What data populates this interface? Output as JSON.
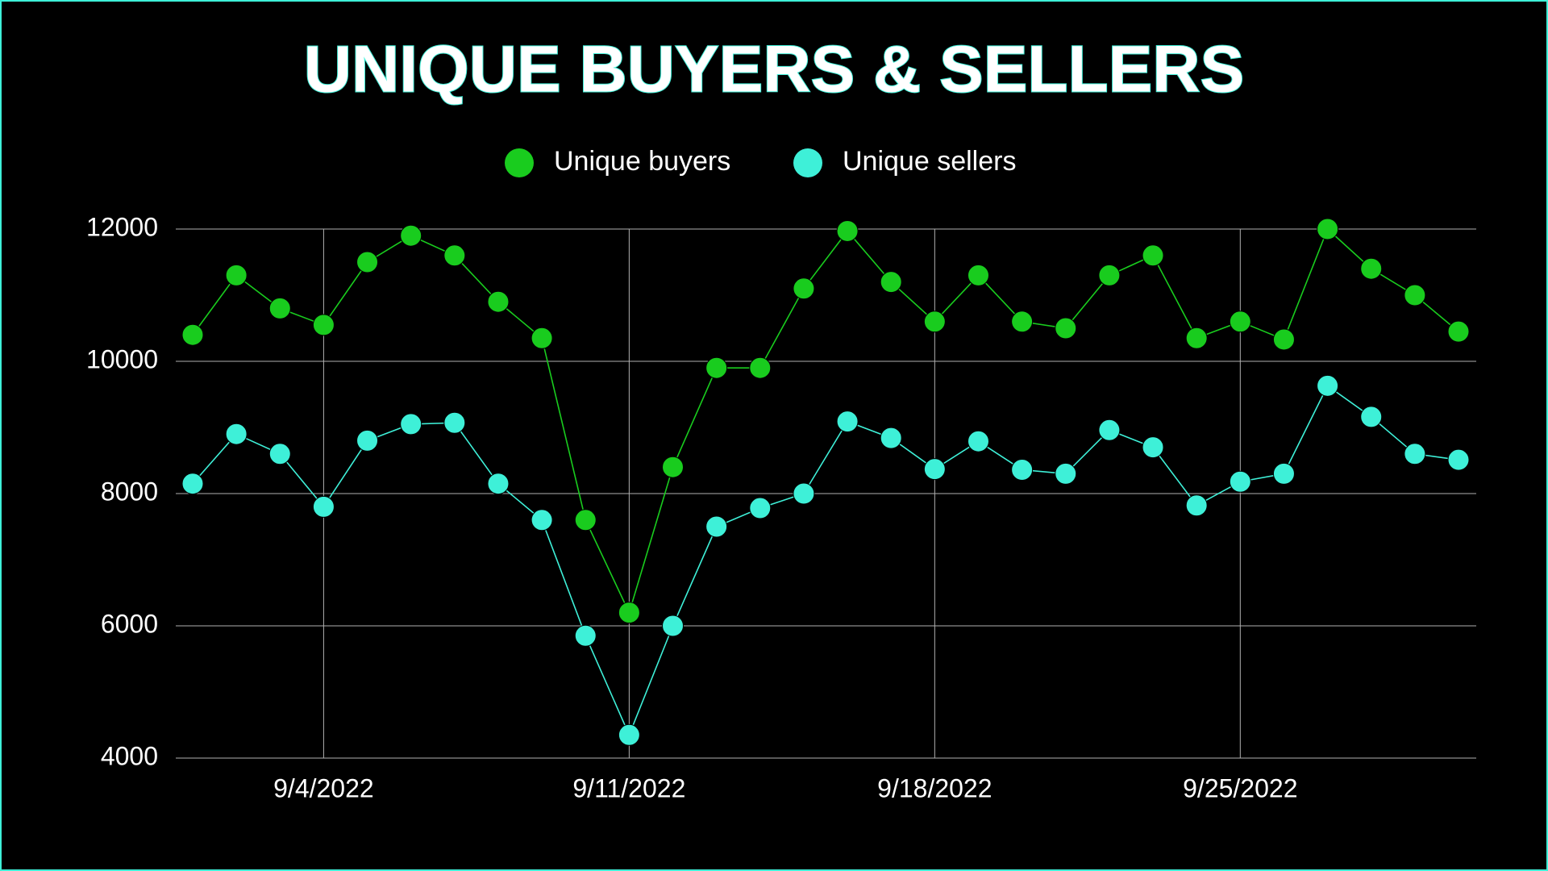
{
  "chart_data": {
    "type": "line",
    "title": "UNIQUE BUYERS & SELLERS",
    "x": [
      "2022-09-01",
      "2022-09-02",
      "2022-09-03",
      "2022-09-04",
      "2022-09-05",
      "2022-09-06",
      "2022-09-07",
      "2022-09-08",
      "2022-09-09",
      "2022-09-10",
      "2022-09-11",
      "2022-09-12",
      "2022-09-13",
      "2022-09-14",
      "2022-09-15",
      "2022-09-16",
      "2022-09-17",
      "2022-09-18",
      "2022-09-19",
      "2022-09-20",
      "2022-09-21",
      "2022-09-22",
      "2022-09-23",
      "2022-09-24",
      "2022-09-25",
      "2022-09-26",
      "2022-09-27",
      "2022-09-28",
      "2022-09-29",
      "2022-09-30"
    ],
    "xticks": [
      {
        "value": "2022-09-04",
        "label": "9/4/2022"
      },
      {
        "value": "2022-09-11",
        "label": "9/11/2022"
      },
      {
        "value": "2022-09-18",
        "label": "9/18/2022"
      },
      {
        "value": "2022-09-25",
        "label": "9/25/2022"
      }
    ],
    "ylim": [
      4000,
      12000
    ],
    "yticks": [
      4000,
      6000,
      8000,
      10000,
      12000
    ],
    "grid": true,
    "legend": "top",
    "series": [
      {
        "name": "Unique buyers",
        "color": "#19cc1e",
        "values": [
          10400,
          11300,
          10800,
          10550,
          11500,
          11900,
          11600,
          10900,
          10350,
          7600,
          6200,
          8400,
          9900,
          9900,
          11100,
          11970,
          11200,
          10600,
          11300,
          10600,
          10500,
          11300,
          11600,
          10350,
          10600,
          10330,
          12000,
          11400,
          11000,
          10450
        ]
      },
      {
        "name": "Unique sellers",
        "color": "#3ef0d8",
        "values": [
          8150,
          8900,
          8600,
          7800,
          8800,
          9050,
          9070,
          8150,
          7600,
          5850,
          4350,
          6000,
          7500,
          7780,
          8000,
          9090,
          8840,
          8370,
          8790,
          8360,
          8300,
          8960,
          8700,
          7820,
          8180,
          8300,
          9630,
          9160,
          8600,
          8510
        ]
      }
    ]
  }
}
